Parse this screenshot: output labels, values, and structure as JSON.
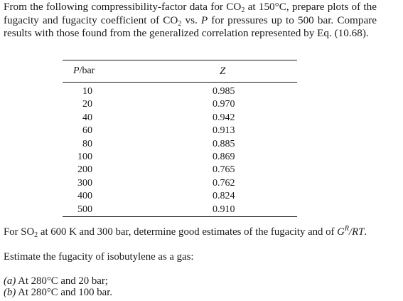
{
  "intro": {
    "a": "From the following compressibility-factor data for CO",
    "a_sub": "2",
    "b": " at 150°C, prepare plots of the fugacity and fugacity coefficient of CO",
    "b_sub": "2",
    "c": " vs. ",
    "c_var": "P",
    "d": " for pressures up to 500 bar. Compare results with those found from the generalized correlation represented by Eq. (10.68)."
  },
  "table": {
    "header_p_var": "P",
    "header_p_unit": "/bar",
    "header_z": "Z",
    "rows": [
      {
        "p": "10",
        "z": "0.985"
      },
      {
        "p": "20",
        "z": "0.970"
      },
      {
        "p": "40",
        "z": "0.942"
      },
      {
        "p": "60",
        "z": "0.913"
      },
      {
        "p": "80",
        "z": "0.885"
      },
      {
        "p": "100",
        "z": "0.869"
      },
      {
        "p": "200",
        "z": "0.765"
      },
      {
        "p": "300",
        "z": "0.762"
      },
      {
        "p": "400",
        "z": "0.824"
      },
      {
        "p": "500",
        "z": "0.910"
      }
    ]
  },
  "q2": {
    "a": "For SO",
    "a_sub": "2",
    "b": " at 600 K and 300 bar, determine good estimates of the fugacity and of ",
    "g": "G",
    "g_sup": "R",
    "rt": "/RT",
    "end": "."
  },
  "q3": {
    "text": "Estimate the fugacity of isobutylene as a gas:",
    "item_a_label": "(a)",
    "item_a": " At 280°C and 20 bar;",
    "item_b_label": "(b)",
    "item_b": " At 280°C and 100 bar."
  }
}
